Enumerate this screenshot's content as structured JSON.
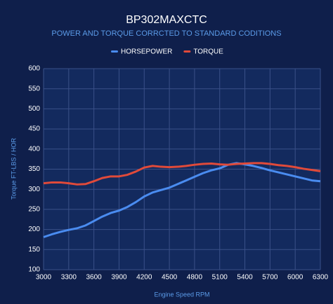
{
  "chart_data": {
    "type": "line",
    "title": "BP302MAXCTC",
    "subtitle": "POWER AND TORQUE CORRCTED TO STANDARD CODITIONS",
    "x_label": "Engine Speed RPM",
    "y_label": "Torque FT-LBS / HOR",
    "x": [
      3000,
      3100,
      3200,
      3300,
      3400,
      3500,
      3600,
      3700,
      3800,
      3900,
      4000,
      4100,
      4200,
      4300,
      4400,
      4500,
      4600,
      4700,
      4800,
      4900,
      5000,
      5100,
      5200,
      5300,
      5400,
      5500,
      5600,
      5700,
      5800,
      5900,
      6000,
      6100,
      6200,
      6300
    ],
    "series": [
      {
        "name": "HORSEPOWER",
        "color": "#4a8cf0",
        "values": [
          181,
          188,
          194,
          199,
          203,
          210,
          221,
          232,
          241,
          247,
          256,
          268,
          282,
          292,
          298,
          304,
          313,
          322,
          331,
          340,
          347,
          352,
          361,
          365,
          362,
          358,
          353,
          347,
          342,
          337,
          332,
          327,
          322,
          320
        ]
      },
      {
        "name": "TORQUE",
        "color": "#e04a3a",
        "values": [
          315,
          317,
          317,
          315,
          312,
          313,
          320,
          328,
          332,
          332,
          336,
          344,
          354,
          358,
          356,
          355,
          356,
          358,
          361,
          363,
          364,
          362,
          361,
          363,
          364,
          365,
          365,
          363,
          360,
          358,
          355,
          351,
          348,
          345
        ]
      }
    ],
    "xlim": [
      3000,
      6300
    ],
    "xticks": [
      3000,
      3300,
      3600,
      3900,
      4200,
      4500,
      4800,
      5100,
      5400,
      5700,
      6000,
      6300
    ],
    "ylim": [
      100,
      600
    ],
    "yticks": [
      100,
      150,
      200,
      250,
      300,
      350,
      400,
      450,
      500,
      550,
      600
    ],
    "grid": true,
    "legend": "top"
  }
}
